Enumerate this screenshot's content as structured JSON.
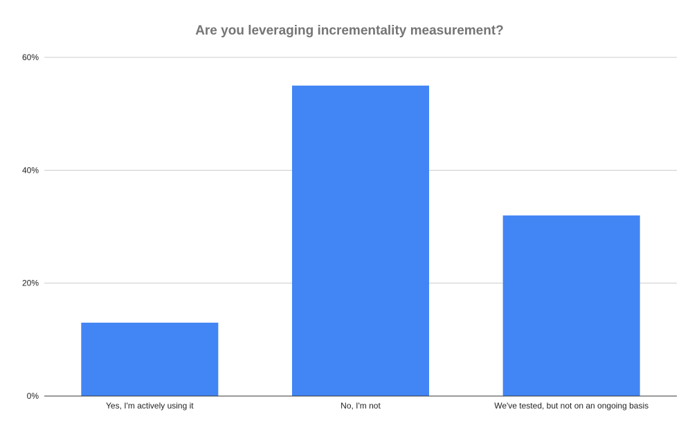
{
  "chart_data": {
    "type": "bar",
    "title": "Are you leveraging incrementality measurement?",
    "categories": [
      "Yes, I'm actively using it",
      "No, I'm not",
      "We've tested, but not on an ongoing basis"
    ],
    "values": [
      13,
      55,
      32
    ],
    "ylim": [
      0,
      60
    ],
    "yticks": [
      0,
      20,
      40,
      60
    ],
    "ytick_labels": [
      "0%",
      "20%",
      "40%",
      "60%"
    ],
    "grid": true,
    "legend": "none",
    "bar_color": "#4285F4",
    "grid_color": "#cccccc",
    "axis_color": "#333333"
  }
}
